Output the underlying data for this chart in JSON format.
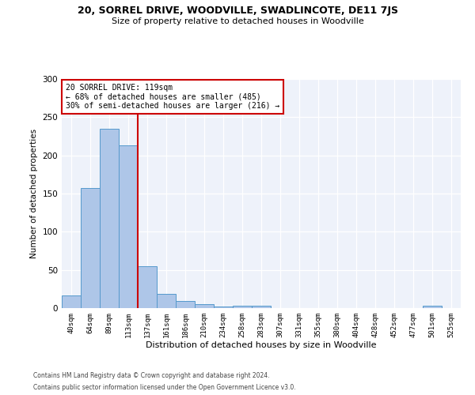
{
  "title1": "20, SORREL DRIVE, WOODVILLE, SWADLINCOTE, DE11 7JS",
  "title2": "Size of property relative to detached houses in Woodville",
  "xlabel": "Distribution of detached houses by size in Woodville",
  "ylabel": "Number of detached properties",
  "categories": [
    "40sqm",
    "64sqm",
    "89sqm",
    "113sqm",
    "137sqm",
    "161sqm",
    "186sqm",
    "210sqm",
    "234sqm",
    "258sqm",
    "283sqm",
    "307sqm",
    "331sqm",
    "355sqm",
    "380sqm",
    "404sqm",
    "428sqm",
    "452sqm",
    "477sqm",
    "501sqm",
    "525sqm"
  ],
  "values": [
    17,
    157,
    235,
    213,
    55,
    19,
    9,
    5,
    2,
    3,
    3,
    0,
    0,
    0,
    0,
    0,
    0,
    0,
    0,
    3,
    0
  ],
  "bar_color": "#aec6e8",
  "bar_edge_color": "#5599cc",
  "vline_color": "#cc0000",
  "vline_x": 3.5,
  "annotation_line1": "20 SORREL DRIVE: 119sqm",
  "annotation_line2": "← 68% of detached houses are smaller (485)",
  "annotation_line3": "30% of semi-detached houses are larger (216) →",
  "annotation_box_color": "white",
  "annotation_box_edge": "#cc0000",
  "footer1": "Contains HM Land Registry data © Crown copyright and database right 2024.",
  "footer2": "Contains public sector information licensed under the Open Government Licence v3.0.",
  "bg_color": "#eef2fa",
  "ylim": [
    0,
    300
  ],
  "yticks": [
    0,
    50,
    100,
    150,
    200,
    250,
    300
  ]
}
